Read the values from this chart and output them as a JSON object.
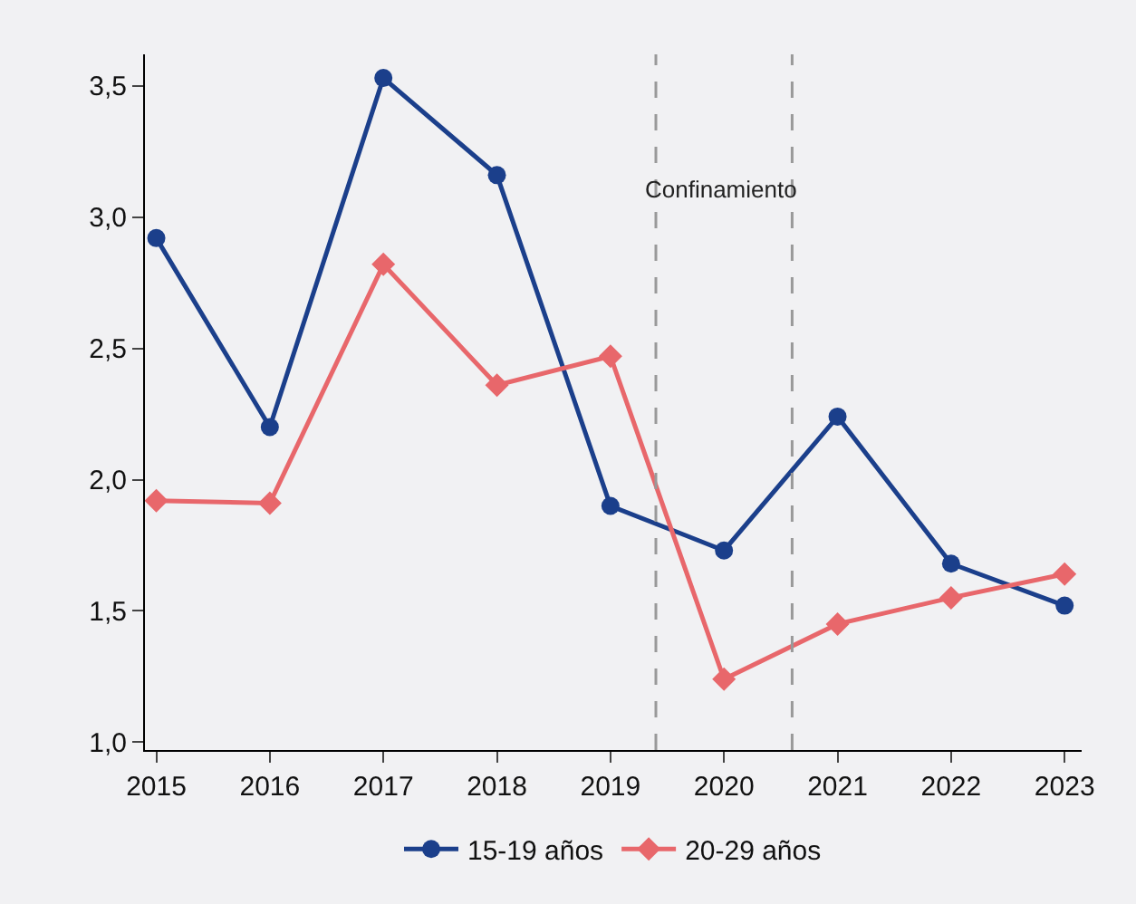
{
  "chart_data": {
    "type": "line",
    "x": [
      2015,
      2016,
      2017,
      2018,
      2019,
      2020,
      2021,
      2022,
      2023
    ],
    "series": [
      {
        "name": "15-19 años",
        "color": "#1b3f8b",
        "marker": "circle",
        "values": [
          2.92,
          2.2,
          3.53,
          3.16,
          1.9,
          1.73,
          2.24,
          1.68,
          1.52
        ]
      },
      {
        "name": "20-29 años",
        "color": "#e8676b",
        "marker": "diamond",
        "values": [
          1.92,
          1.91,
          2.82,
          2.36,
          2.47,
          1.24,
          1.45,
          1.55,
          1.64
        ]
      }
    ],
    "xlim": [
      2014.9,
      2023.15
    ],
    "xticks": [
      2015,
      2016,
      2017,
      2018,
      2019,
      2020,
      2021,
      2022,
      2023
    ],
    "ylim": [
      0.97,
      3.62
    ],
    "yticks": [
      {
        "value": 1,
        "label": "1,0"
      },
      {
        "value": 1.5,
        "label": "1,5"
      },
      {
        "value": 2,
        "label": "2,0"
      },
      {
        "value": 2.5,
        "label": "2,5"
      },
      {
        "value": 3,
        "label": "3,0"
      },
      {
        "value": 3.5,
        "label": "3,5"
      }
    ],
    "ref_lines": [
      {
        "axis": "x",
        "value": 2019.4,
        "color": "#999999",
        "line_style": "dashed"
      },
      {
        "axis": "x",
        "value": 2020.6,
        "color": "#999999",
        "line_style": "dashed"
      }
    ],
    "annotations": [
      "Confinamiento"
    ],
    "grid": false,
    "legend": "bottom",
    "line_style": "solid"
  }
}
